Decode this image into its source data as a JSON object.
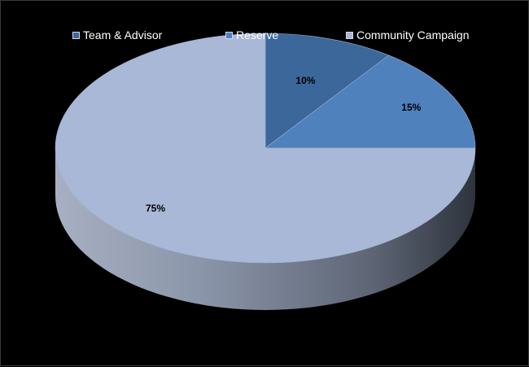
{
  "chart_data": {
    "type": "pie",
    "title": "",
    "categories": [
      "Team & Advisor",
      "Reserve",
      "Community Campaign"
    ],
    "values": [
      10,
      15,
      75
    ],
    "labels": [
      "10%",
      "15%",
      "75%"
    ],
    "colors": [
      "#3C679A",
      "#4F81BD",
      "#A9B8D6"
    ],
    "legend_placement": "top",
    "style": "3d"
  }
}
